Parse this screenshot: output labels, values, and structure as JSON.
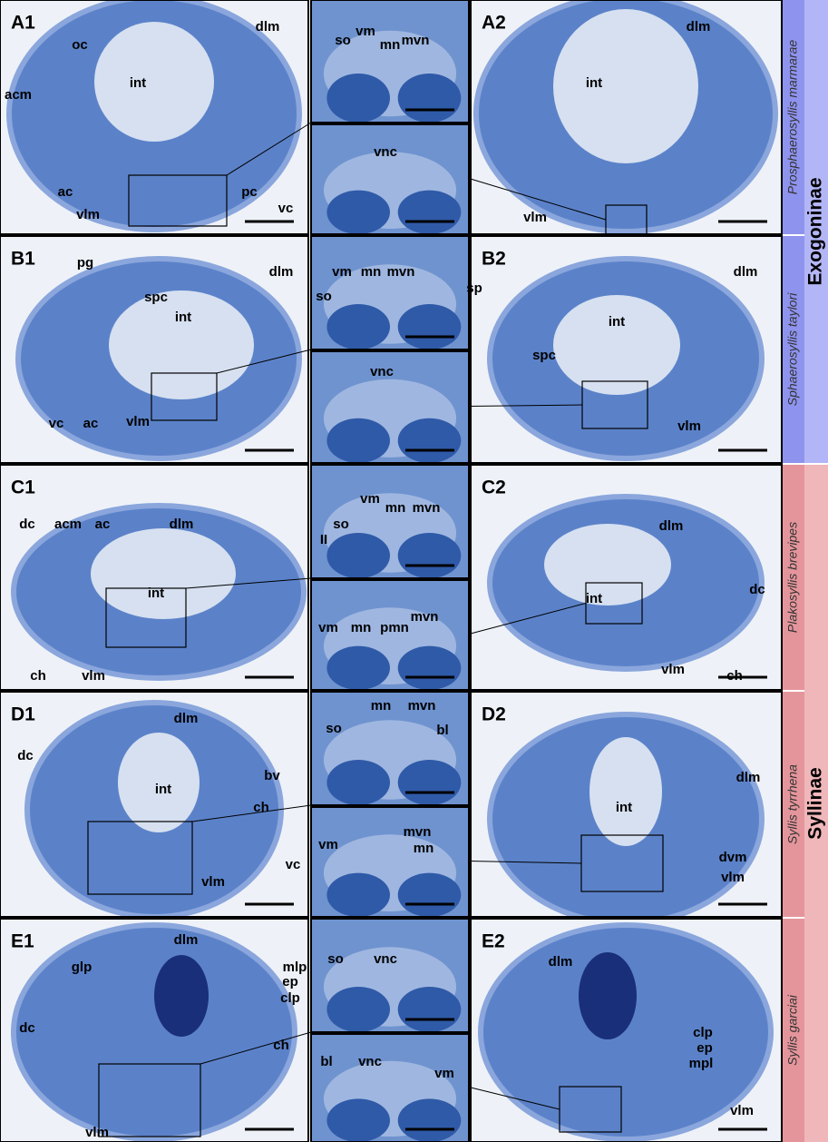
{
  "rows": [
    {
      "species": "Prosphaerosyllis marmarae",
      "panels": [
        {
          "label": "A1",
          "annotations": [
            "oc",
            "int",
            "dlm",
            "acm",
            "ac",
            "vlm",
            "pc",
            "vc"
          ]
        },
        {
          "annotations": [
            "so",
            "vm",
            "mn",
            "mvn"
          ]
        },
        {
          "annotations": [
            "vnc"
          ]
        },
        {
          "label": "A2",
          "annotations": [
            "dlm",
            "int",
            "vlm"
          ]
        }
      ]
    },
    {
      "species": "Sphaerosyllis taylori",
      "panels": [
        {
          "label": "B1",
          "annotations": [
            "pg",
            "spc",
            "dlm",
            "int",
            "vc",
            "ac",
            "vlm"
          ]
        },
        {
          "annotations": [
            "vm",
            "mn",
            "mvn",
            "so"
          ]
        },
        {
          "annotations": [
            "vnc"
          ]
        },
        {
          "label": "B2",
          "annotations": [
            "sp",
            "dlm",
            "int",
            "spc",
            "vlm"
          ]
        }
      ]
    },
    {
      "species": "Plakosyllis brevipes",
      "panels": [
        {
          "label": "C1",
          "annotations": [
            "dc",
            "acm",
            "ac",
            "dlm",
            "int",
            "ch",
            "vlm"
          ]
        },
        {
          "annotations": [
            "so",
            "vm",
            "mn",
            "mvn",
            "II"
          ]
        },
        {
          "annotations": [
            "vm",
            "mn",
            "pmn",
            "mvn"
          ]
        },
        {
          "label": "C2",
          "annotations": [
            "dlm",
            "int",
            "dc",
            "vlm",
            "ch"
          ]
        }
      ]
    },
    {
      "species": "Syllis tyrrhena",
      "panels": [
        {
          "label": "D1",
          "annotations": [
            "dlm",
            "dc",
            "bv",
            "int",
            "ch",
            "vc",
            "vlm"
          ]
        },
        {
          "annotations": [
            "mn",
            "mvn",
            "so",
            "bl"
          ]
        },
        {
          "annotations": [
            "vm",
            "mvn",
            "mn"
          ]
        },
        {
          "label": "D2",
          "annotations": [
            "dlm",
            "int",
            "dvm",
            "vlm"
          ]
        }
      ]
    },
    {
      "species": "Syllis garciai",
      "panels": [
        {
          "label": "E1",
          "annotations": [
            "dlm",
            "glp",
            "mlp",
            "ep",
            "clp",
            "dc",
            "ch",
            "vlm"
          ]
        },
        {
          "annotations": [
            "so",
            "vnc"
          ]
        },
        {
          "annotations": [
            "bl",
            "vnc",
            "vm"
          ]
        },
        {
          "label": "E2",
          "annotations": [
            "dlm",
            "clp",
            "ep",
            "mpl",
            "vlm"
          ]
        }
      ]
    }
  ],
  "subfamilies": [
    {
      "name": "Exogoninae"
    },
    {
      "name": "Syllinae"
    }
  ]
}
